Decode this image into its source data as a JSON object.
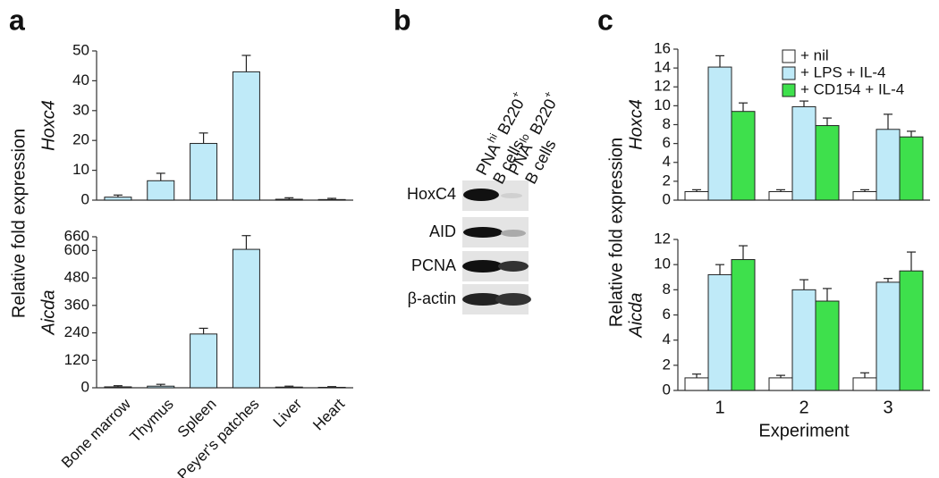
{
  "panel_labels": [
    "a",
    "b",
    "c"
  ],
  "shared_ylabels": [
    "Relative fold expression",
    "Relative fold expression"
  ],
  "blot": {
    "columns": [
      {
        "parts": [
          "PNA",
          "hi",
          " B220",
          "+"
        ],
        "line2": "B cells"
      },
      {
        "parts": [
          "PNA",
          "lo",
          " B220",
          "+"
        ],
        "line2": "B cells"
      }
    ],
    "rows": [
      "HoxC4",
      "AID",
      "PCNA",
      "β-actin"
    ]
  },
  "chart_data": [
    {
      "type": "bar",
      "ylabel": "Hoxc4",
      "categories": [
        null,
        null,
        null,
        null,
        null,
        null
      ],
      "series": [
        {
          "color": "#bfeaf8",
          "values": [
            1,
            6.5,
            19,
            43,
            0.3,
            0.2
          ],
          "errors": [
            0.7,
            2.5,
            3.5,
            5.5,
            0.5,
            0.4
          ]
        }
      ],
      "ylim": [
        0,
        50
      ],
      "yticks": [
        0,
        10,
        20,
        30,
        40,
        50
      ]
    },
    {
      "type": "bar",
      "ylabel": "Aicda",
      "categories": [
        "Bone marrow",
        "Thymus",
        "Spleen",
        "Peyer's patches",
        "Liver",
        "Heart"
      ],
      "series": [
        {
          "color": "#bfeaf8",
          "values": [
            4,
            7,
            235,
            605,
            3,
            2
          ],
          "errors": [
            5,
            8,
            25,
            60,
            4,
            3
          ]
        }
      ],
      "ylim": [
        0,
        660
      ],
      "yticks": [
        0,
        120,
        240,
        360,
        480,
        600,
        660
      ]
    },
    {
      "type": "bar",
      "ylabel": "Hoxc4",
      "legend": "upper right",
      "categories": [
        null,
        null,
        null
      ],
      "series": [
        {
          "name": "+ nil",
          "color": "#ffffff",
          "values": [
            0.9,
            0.9,
            0.9
          ],
          "errors": [
            0.2,
            0.2,
            0.2
          ]
        },
        {
          "name": "+ LPS + IL-4",
          "color": "#bfeaf8",
          "values": [
            14.1,
            9.9,
            7.5
          ],
          "errors": [
            1.2,
            0.6,
            1.6
          ]
        },
        {
          "name": "+ CD154 + IL-4",
          "color": "#3ee04c",
          "values": [
            9.4,
            7.9,
            6.7
          ],
          "errors": [
            0.9,
            0.8,
            0.6
          ]
        }
      ],
      "ylim": [
        0,
        16
      ],
      "yticks": [
        0,
        2,
        4,
        6,
        8,
        10,
        12,
        14,
        16
      ]
    },
    {
      "type": "bar",
      "ylabel": "Aicda",
      "xlabel": "Experiment",
      "categories": [
        "1",
        "2",
        "3"
      ],
      "series": [
        {
          "color": "#ffffff",
          "values": [
            1.0,
            1.0,
            1.0
          ],
          "errors": [
            0.3,
            0.2,
            0.4
          ]
        },
        {
          "color": "#bfeaf8",
          "values": [
            9.2,
            8.0,
            8.6
          ],
          "errors": [
            0.8,
            0.8,
            0.3
          ]
        },
        {
          "color": "#3ee04c",
          "values": [
            10.4,
            7.1,
            9.5
          ],
          "errors": [
            1.1,
            1.0,
            1.5
          ]
        }
      ],
      "ylim": [
        0,
        12
      ],
      "yticks": [
        0,
        2,
        4,
        6,
        8,
        10,
        12
      ]
    }
  ]
}
